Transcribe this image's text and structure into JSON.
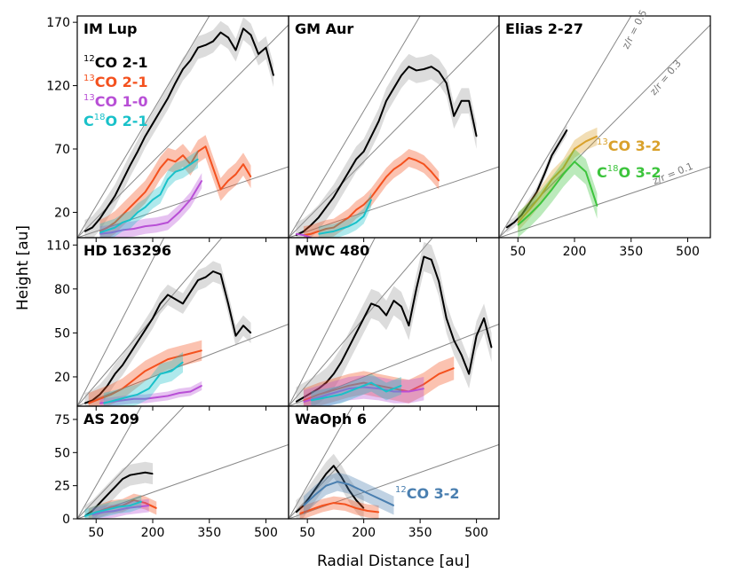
{
  "figure": {
    "xlabel": "Radial Distance [au]",
    "ylabel": "Height [au]"
  },
  "colors": {
    "co12_21": "#000000",
    "co13_21": "#f4511e",
    "co13_10": "#b84fd6",
    "c18o_21": "#19c1c9",
    "co13_32": "#d9a12b",
    "c18o_32": "#3cc43c",
    "co12_32": "#4a7fb0",
    "guide": "#888888"
  },
  "legend": {
    "co12_21": {
      "sup": "12",
      "text": "CO 2-1"
    },
    "co13_21": {
      "sup": "13",
      "text": "CO 2-1"
    },
    "co13_10": {
      "sup": "13",
      "text": "CO 1-0"
    },
    "c18o_21": {
      "pre": "C",
      "sup": "18",
      "text": "O 2-1"
    },
    "co13_32": {
      "sup": "13",
      "text": "CO 3-2"
    },
    "c18o_32": {
      "pre": "C",
      "sup": "18",
      "text": "O 3-2"
    },
    "co12_32": {
      "sup": "12",
      "text": "CO 3-2"
    }
  },
  "guides": [
    {
      "slope": 0.5,
      "label": "z/r = 0.5"
    },
    {
      "slope": 0.3,
      "label": "z/r = 0.3"
    },
    {
      "slope": 0.1,
      "label": "z/r = 0.1"
    }
  ],
  "chart_data": [
    {
      "type": "line",
      "title": "IM Lup",
      "xlim": [
        0,
        560
      ],
      "ylim": [
        0,
        175
      ],
      "xticks": [
        50,
        200,
        350,
        500
      ],
      "yticks": [
        20,
        70,
        120,
        170
      ],
      "series": [
        {
          "name": "12CO 2-1",
          "key": "co12_21",
          "band": 9,
          "x": [
            20,
            40,
            60,
            80,
            100,
            120,
            140,
            160,
            180,
            200,
            220,
            240,
            260,
            280,
            300,
            320,
            340,
            360,
            380,
            400,
            420,
            440,
            460,
            480,
            500,
            520
          ],
          "y": [
            5,
            8,
            15,
            24,
            33,
            45,
            57,
            68,
            80,
            90,
            100,
            110,
            122,
            133,
            140,
            150,
            152,
            155,
            162,
            158,
            148,
            165,
            160,
            145,
            150,
            128
          ]
        },
        {
          "name": "13CO 2-1",
          "key": "co13_21",
          "band": 9,
          "x": [
            60,
            80,
            100,
            120,
            140,
            160,
            180,
            200,
            220,
            240,
            260,
            280,
            300,
            320,
            340,
            360,
            380,
            400,
            420,
            440,
            460
          ],
          "y": [
            5,
            8,
            12,
            18,
            24,
            30,
            36,
            45,
            55,
            62,
            60,
            65,
            58,
            68,
            72,
            55,
            38,
            45,
            50,
            58,
            48
          ]
        },
        {
          "name": "13CO 1-0",
          "key": "co13_10",
          "band": 6,
          "x": [
            60,
            90,
            120,
            150,
            180,
            210,
            240,
            270,
            300,
            330
          ],
          "y": [
            3,
            4,
            6,
            7,
            9,
            10,
            12,
            20,
            30,
            45
          ]
        },
        {
          "name": "C18O 2-1",
          "key": "c18o_21",
          "band": 7,
          "x": [
            60,
            80,
            100,
            120,
            140,
            160,
            180,
            200,
            220,
            240,
            260,
            280,
            300,
            320
          ],
          "y": [
            4,
            6,
            8,
            12,
            14,
            20,
            24,
            30,
            34,
            46,
            52,
            54,
            58,
            62
          ]
        }
      ],
      "legend_keys": [
        "co12_21",
        "co13_21",
        "co13_10",
        "c18o_21"
      ]
    },
    {
      "type": "line",
      "title": "GM Aur",
      "xlim": [
        0,
        560
      ],
      "ylim": [
        0,
        175
      ],
      "xticks": [
        50,
        200,
        350,
        500
      ],
      "yticks": [
        20,
        70,
        120,
        170
      ],
      "series": [
        {
          "name": "12CO 2-1",
          "key": "co12_21",
          "band": 10,
          "x": [
            20,
            40,
            60,
            80,
            100,
            120,
            140,
            160,
            180,
            200,
            220,
            240,
            260,
            280,
            300,
            320,
            340,
            360,
            380,
            400,
            420,
            440,
            460,
            480,
            500
          ],
          "y": [
            2,
            5,
            10,
            16,
            24,
            32,
            42,
            52,
            62,
            68,
            80,
            92,
            108,
            118,
            128,
            135,
            132,
            133,
            135,
            131,
            122,
            96,
            108,
            108,
            80
          ]
        },
        {
          "name": "13CO 2-1",
          "key": "co13_21",
          "band": 7,
          "x": [
            40,
            60,
            80,
            100,
            120,
            140,
            160,
            180,
            200,
            220,
            240,
            260,
            280,
            300,
            320,
            340,
            360,
            380,
            400
          ],
          "y": [
            2,
            3,
            5,
            7,
            8,
            12,
            16,
            22,
            26,
            32,
            40,
            48,
            54,
            58,
            63,
            61,
            58,
            52,
            45
          ]
        },
        {
          "name": "13CO 1-0",
          "key": "co13_10",
          "band": 0,
          "x": [
            20,
            40,
            60
          ],
          "y": [
            3,
            2,
            0
          ]
        },
        {
          "name": "C18O 2-1",
          "key": "c18o_21",
          "band": 6,
          "x": [
            80,
            100,
            120,
            140,
            160,
            180,
            200,
            220
          ],
          "y": [
            3,
            4,
            5,
            7,
            9,
            12,
            17,
            30
          ]
        }
      ],
      "legend_keys": []
    },
    {
      "type": "line",
      "title": "Elias 2-27",
      "xlim": [
        0,
        560
      ],
      "ylim": [
        0,
        175
      ],
      "xticks": [
        50,
        200,
        350,
        500
      ],
      "yticks": [
        20,
        70,
        120,
        170
      ],
      "series": [
        {
          "name": "12CO 2-1",
          "key": "co12_21",
          "band": 4,
          "x": [
            20,
            40,
            60,
            80,
            100,
            120,
            140,
            160,
            180
          ],
          "y": [
            8,
            12,
            18,
            27,
            36,
            50,
            65,
            75,
            85
          ]
        },
        {
          "name": "13CO 3-2",
          "key": "co13_32",
          "band": 7,
          "x": [
            50,
            80,
            110,
            140,
            170,
            200,
            230,
            260
          ],
          "y": [
            12,
            22,
            33,
            46,
            55,
            70,
            76,
            80
          ]
        },
        {
          "name": "C18O 3-2",
          "key": "c18o_32",
          "band": 10,
          "x": [
            50,
            80,
            110,
            140,
            170,
            200,
            230,
            260
          ],
          "y": [
            10,
            18,
            27,
            38,
            50,
            60,
            52,
            25
          ]
        }
      ],
      "legend_keys": [
        "co13_32",
        "c18o_32"
      ]
    },
    {
      "type": "line",
      "title": "HD 163296",
      "xlim": [
        0,
        560
      ],
      "ylim": [
        0,
        115
      ],
      "xticks": [
        50,
        200,
        350,
        500
      ],
      "yticks": [
        20,
        50,
        80,
        110
      ],
      "series": [
        {
          "name": "12CO 2-1",
          "key": "co12_21",
          "band": 7,
          "x": [
            20,
            40,
            60,
            80,
            100,
            120,
            140,
            160,
            180,
            200,
            220,
            240,
            260,
            280,
            300,
            320,
            340,
            360,
            380,
            400,
            420,
            440,
            460
          ],
          "y": [
            2,
            4,
            8,
            14,
            22,
            28,
            36,
            44,
            52,
            60,
            70,
            76,
            73,
            70,
            78,
            86,
            88,
            92,
            90,
            70,
            48,
            55,
            50
          ]
        },
        {
          "name": "13CO 2-1",
          "key": "co13_21",
          "band": 7,
          "x": [
            30,
            60,
            90,
            120,
            150,
            180,
            210,
            240,
            270,
            300,
            330
          ],
          "y": [
            2,
            5,
            8,
            12,
            18,
            24,
            28,
            32,
            34,
            36,
            38
          ]
        },
        {
          "name": "13CO 1-0",
          "key": "co13_10",
          "band": 3,
          "x": [
            60,
            90,
            120,
            150,
            180,
            210,
            240,
            270,
            300,
            330
          ],
          "y": [
            2,
            3,
            4,
            5,
            5,
            6,
            7,
            9,
            10,
            14
          ]
        },
        {
          "name": "C18O 2-1",
          "key": "c18o_21",
          "band": 7,
          "x": [
            70,
            100,
            130,
            160,
            190,
            220,
            250,
            280
          ],
          "y": [
            2,
            4,
            6,
            8,
            12,
            22,
            24,
            30
          ]
        }
      ],
      "legend_keys": []
    },
    {
      "type": "line",
      "title": "MWC 480",
      "xlim": [
        0,
        560
      ],
      "ylim": [
        0,
        115
      ],
      "xticks": [
        50,
        200,
        350,
        500
      ],
      "yticks": [
        20,
        50,
        80,
        110
      ],
      "series": [
        {
          "name": "12CO 2-1",
          "key": "co12_21",
          "band": 10,
          "x": [
            20,
            40,
            60,
            80,
            100,
            120,
            140,
            160,
            180,
            200,
            220,
            240,
            260,
            280,
            300,
            320,
            340,
            360,
            380,
            400,
            420,
            440,
            460,
            480,
            500,
            520,
            540
          ],
          "y": [
            3,
            6,
            9,
            12,
            16,
            22,
            30,
            40,
            50,
            60,
            70,
            68,
            62,
            72,
            68,
            55,
            80,
            102,
            100,
            85,
            60,
            45,
            35,
            22,
            48,
            60,
            40
          ]
        },
        {
          "name": "13CO 2-1",
          "key": "co13_21",
          "band": 8,
          "x": [
            40,
            80,
            120,
            160,
            200,
            240,
            280,
            320,
            360,
            400,
            440
          ],
          "y": [
            4,
            8,
            11,
            14,
            16,
            14,
            12,
            10,
            15,
            22,
            26
          ]
        },
        {
          "name": "13CO 1-0",
          "key": "co13_10",
          "band": 8,
          "x": [
            40,
            80,
            120,
            160,
            200,
            240,
            280,
            320,
            360
          ],
          "y": [
            3,
            6,
            9,
            12,
            13,
            12,
            10,
            10,
            12
          ]
        },
        {
          "name": "C18O 2-1",
          "key": "c18o_21",
          "band": 6,
          "x": [
            60,
            100,
            140,
            180,
            220,
            260,
            300
          ],
          "y": [
            4,
            6,
            8,
            12,
            16,
            10,
            14
          ]
        }
      ],
      "legend_keys": []
    },
    {
      "type": "line",
      "title": "AS 209",
      "xlim": [
        0,
        560
      ],
      "ylim": [
        0,
        85
      ],
      "xticks": [
        50,
        200,
        350,
        500
      ],
      "yticks": [
        0,
        25,
        50,
        75
      ],
      "series": [
        {
          "name": "12CO 2-1",
          "key": "co12_21",
          "band": 8,
          "x": [
            20,
            40,
            60,
            80,
            100,
            120,
            140,
            160,
            180,
            200
          ],
          "y": [
            2,
            6,
            12,
            18,
            24,
            30,
            33,
            34,
            35,
            34
          ]
        },
        {
          "name": "13CO 2-1",
          "key": "co13_21",
          "band": 5,
          "x": [
            30,
            60,
            90,
            120,
            150,
            180,
            210
          ],
          "y": [
            3,
            6,
            9,
            10,
            14,
            12,
            8
          ]
        },
        {
          "name": "13CO 1-0",
          "key": "co13_10",
          "band": 5,
          "x": [
            40,
            70,
            100,
            130,
            160,
            190
          ],
          "y": [
            3,
            5,
            6,
            8,
            9,
            10
          ]
        },
        {
          "name": "C18O 2-1",
          "key": "c18o_21",
          "band": 5,
          "x": [
            20,
            50,
            80,
            110,
            140,
            170
          ],
          "y": [
            2,
            5,
            7,
            9,
            10,
            13
          ]
        }
      ],
      "legend_keys": []
    },
    {
      "type": "line",
      "title": "WaOph 6",
      "xlim": [
        0,
        560
      ],
      "ylim": [
        0,
        85
      ],
      "xticks": [
        50,
        200,
        350,
        500
      ],
      "yticks": [
        0,
        25,
        50,
        75
      ],
      "series": [
        {
          "name": "12CO 2-1",
          "key": "co12_21",
          "band": 9,
          "x": [
            20,
            40,
            60,
            80,
            100,
            120,
            140,
            160,
            180,
            200
          ],
          "y": [
            5,
            10,
            18,
            26,
            34,
            40,
            32,
            22,
            14,
            8
          ]
        },
        {
          "name": "13CO 2-1",
          "key": "co13_21",
          "band": 5,
          "x": [
            30,
            60,
            90,
            120,
            150,
            180,
            210,
            240
          ],
          "y": [
            4,
            7,
            10,
            12,
            11,
            8,
            6,
            5
          ]
        },
        {
          "name": "12CO 3-2",
          "key": "co12_32",
          "band": 7,
          "x": [
            40,
            70,
            100,
            130,
            160,
            190,
            220,
            250,
            280
          ],
          "y": [
            10,
            18,
            25,
            28,
            26,
            22,
            18,
            14,
            10
          ]
        }
      ],
      "legend_keys": [
        "co12_32"
      ]
    }
  ]
}
